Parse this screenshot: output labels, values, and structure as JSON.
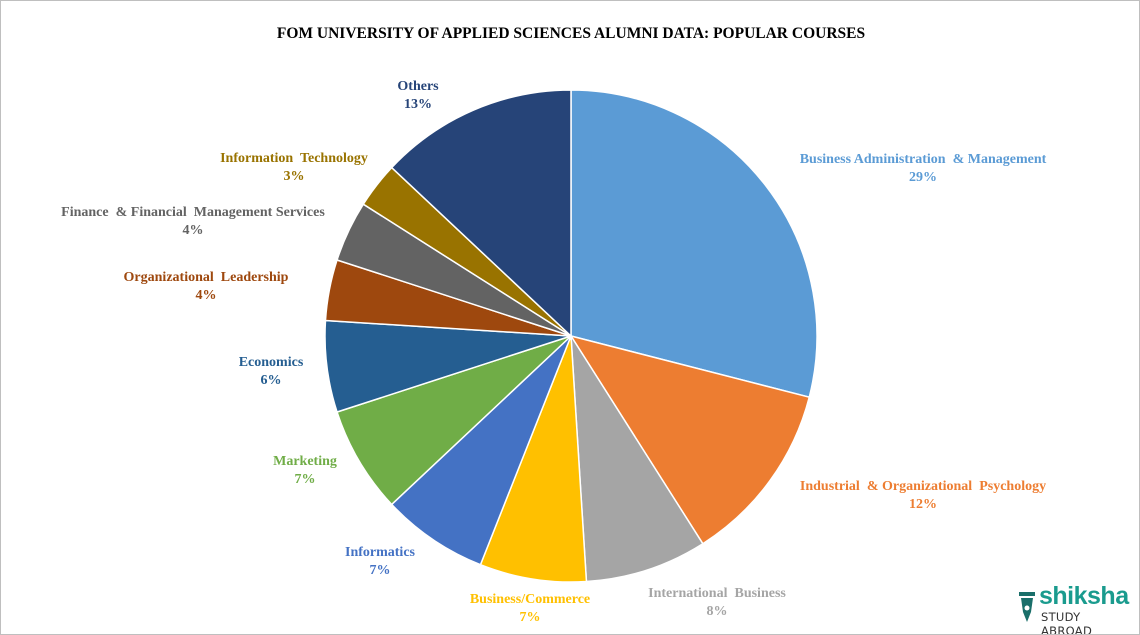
{
  "chart_data": {
    "type": "pie",
    "title": "FOM UNIVERSITY OF APPLIED SCIENCES ALUMNI DATA: POPULAR COURSES",
    "start": "top",
    "direction": "clockwise",
    "slices": [
      {
        "label": "Business Administration  & Management",
        "value": 29,
        "value_label": "29%",
        "color": "#5B9BD5"
      },
      {
        "label": "Industrial  & Organizational  Psychology",
        "value": 12,
        "value_label": "12%",
        "color": "#ED7D31"
      },
      {
        "label": "International  Business",
        "value": 8,
        "value_label": "8%",
        "color": "#A5A5A5"
      },
      {
        "label": "Business/Commerce",
        "value": 7,
        "value_label": "7%",
        "color": "#FFC000"
      },
      {
        "label": "Informatics",
        "value": 7,
        "value_label": "7%",
        "color": "#4472C4"
      },
      {
        "label": "Marketing",
        "value": 7,
        "value_label": "7%",
        "color": "#70AD47"
      },
      {
        "label": "Economics",
        "value": 6,
        "value_label": "6%",
        "color": "#255E91"
      },
      {
        "label": "Organizational  Leadership",
        "value": 4,
        "value_label": "4%",
        "color": "#9E480E"
      },
      {
        "label": "Finance  & Financial  Management Services",
        "value": 4,
        "value_label": "4%",
        "color": "#636363"
      },
      {
        "label": "Information  Technology",
        "value": 3,
        "value_label": "3%",
        "color": "#997300"
      },
      {
        "label": "Others",
        "value": 13,
        "value_label": "13%",
        "color": "#264478"
      }
    ]
  },
  "logo": {
    "name": "shiksha",
    "tagline": "STUDY ABROAD"
  }
}
